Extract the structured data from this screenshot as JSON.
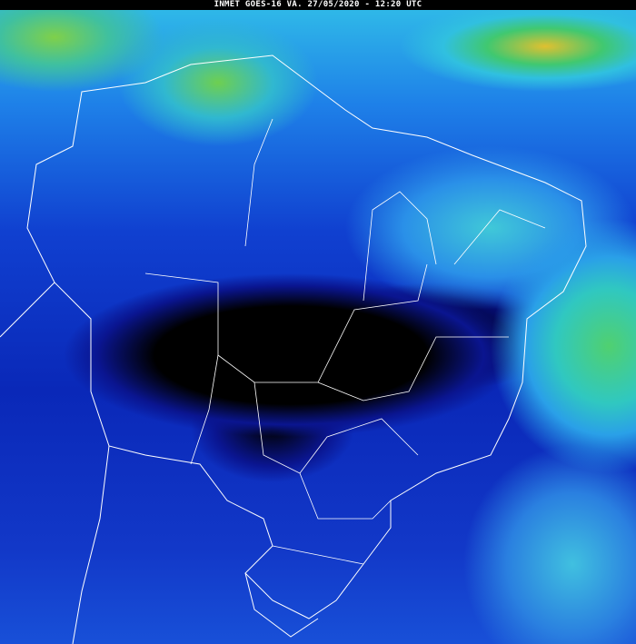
{
  "header": {
    "title": "INMET GOES-16 VA. 27/05/2020 - 12:20 UTC"
  },
  "imagery": {
    "product": "water vapor",
    "colors": {
      "dry": "#000000",
      "deep_blue": "#0a1fb0",
      "blue": "#1c5ae0",
      "cyan": "#2ab8e8",
      "green": "#4fd07a",
      "yellow": "#e8d83a",
      "red": "#d02a1a"
    },
    "borders_color": "#ffffff"
  }
}
